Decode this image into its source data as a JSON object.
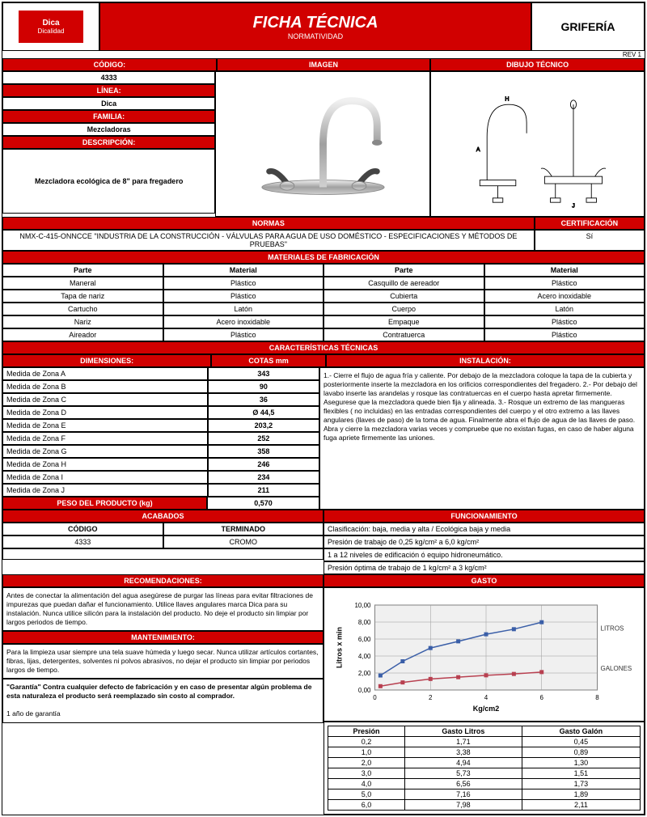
{
  "header": {
    "logo_top": "Dica",
    "logo_bottom": "Dicalidad",
    "title": "FICHA TÉCNICA",
    "subtitle": "NORMATIVIDAD",
    "category": "GRIFERÍA",
    "rev": "REV 1"
  },
  "labels": {
    "codigo": "CÓDIGO:",
    "imagen": "IMAGEN",
    "dibujo": "DIBUJO TÉCNICO",
    "linea": "LÍNEA:",
    "familia": "FAMILIA:",
    "descripcion": "DESCRIPCIÓN:",
    "normas": "NORMAS",
    "certificacion": "CERTIFICACIÓN",
    "materiales": "MATERIALES DE FABRICACIÓN",
    "parte": "Parte",
    "material": "Material",
    "caracteristicas": "CARACTERÍSTICAS TÉCNICAS",
    "dimensiones": "DIMENSIONES:",
    "cotas": "COTAS mm",
    "instalacion": "INSTALACIÓN:",
    "peso": "PESO DEL PRODUCTO (kg)",
    "acabados": "ACABADOS",
    "funcionamiento": "FUNCIONAMIENTO",
    "codigo2": "CÓDIGO",
    "terminado": "TERMINADO",
    "recomendaciones": "RECOMENDACIONES:",
    "gasto": "GASTO",
    "mantenimiento": "MANTENIMIENTO:",
    "presion": "Presión",
    "gasto_litros": "Gasto Litros",
    "gasto_galon": "Gasto Galón"
  },
  "info": {
    "codigo": "4333",
    "linea": "Dica",
    "familia": "Mezcladoras",
    "descripcion": "Mezcladora ecológica de 8\" para fregadero",
    "normas": "NMX-C-415-ONNCCE  \"INDUSTRIA DE LA CONSTRUCCIÓN -  VÁLVULAS PARA AGUA DE USO DOMÉSTICO - ESPECIFICACIONES Y MÉTODOS DE PRUEBAS\"",
    "certificacion": "Sí",
    "peso_val": "0,570"
  },
  "materiales": [
    [
      "Maneral",
      "Plástico",
      "Casquillo de aereador",
      "Plástico"
    ],
    [
      "Tapa de nariz",
      "Plástico",
      "Cubierta",
      "Acero inoxidable"
    ],
    [
      "Cartucho",
      "Latón",
      "Cuerpo",
      "Latón"
    ],
    [
      "Nariz",
      "Acero inoxidable",
      "Empaque",
      "Plástico"
    ],
    [
      "Aireador",
      "Plástico",
      "Contratuerca",
      "Plástico"
    ]
  ],
  "dimensiones": [
    [
      "Medida de Zona A",
      "343"
    ],
    [
      "Medida de Zona B",
      "90"
    ],
    [
      "Medida de Zona C",
      "36"
    ],
    [
      "Medida de Zona D",
      "Ø 44,5"
    ],
    [
      "Medida de Zona E",
      "203,2"
    ],
    [
      "Medida de Zona F",
      "252"
    ],
    [
      "Medida de Zona G",
      "358"
    ],
    [
      "Medida de Zona H",
      "246"
    ],
    [
      "Medida de Zona I",
      "234"
    ],
    [
      "Medida de Zona J",
      "211"
    ]
  ],
  "instalacion": "1.- Cierre el flujo de agua fría y caliente. Por debajo de la mezcladora coloque la tapa de la cubierta y posteriormente inserte la mezcladora en los orificios correspondientes del fregadero.                                                                    2.- Por debajo del lavabo inserte las arandelas y rosque las contratuercas en el cuerpo hasta apretar firmemente. Asegurese que la mezcladora quede bien fija y alineada.                                                                                                 3.- Rosque un extremo de las mangueras flexibles ( no incluidas) en las entradas correspondientes del cuerpo y el otro extremo a las llaves angulares (llaves de paso) de la toma de agua. Finalmente abra el flujo de agua de las llaves de paso. Abra y cierre la mezcladora varias veces y compruebe que no existan fugas, en caso de haber alguna fuga apriete firmemente las uniones.",
  "acabados": {
    "codigo": "4333",
    "terminado": "CROMO"
  },
  "funcionamiento": [
    "Clasificación: baja, media y alta / Ecológica baja y media",
    "Presión de trabajo de 0,25 kg/cm² a 6,0 kg/cm²",
    "1 a 12 niveles de edificación ó equipo hidroneumático.",
    "Presión óptima de trabajo de 1 kg/cm² a 3 kg/cm²"
  ],
  "recomendaciones": "Antes de conectar la alimentación del agua asegúrese de purgar las líneas para evitar filtraciones  de impurezas que puedan dañar el  funcionamiento. Utilice llaves angulares marca Dica para su instalación. Nunca utilice silicón para la instalación del producto. No deje el producto sin limpiar por largos periodos de tiempo.",
  "mantenimiento": "Para la limpieza usar siempre una tela suave húmeda y luego secar. Nunca utilizar artículos cortantes, fibras, lijas, detergentes, solventes ni polvos abrasivos, no dejar el producto sin limpiar por periodos largos de tiempo.",
  "garantia": "\"Garantía\" Contra cualquier defecto de fabricación y en caso de presentar algún problema de esta naturaleza el producto será reemplazado sin costo al comprador.",
  "garantia2": "1 año de garantía",
  "chart": {
    "xlabel": "Kg/cm2",
    "ylabel": "Litros x min",
    "series1": "LITROS",
    "series2": "GALONES",
    "xlim": [
      0,
      8
    ],
    "ylim": [
      0,
      10
    ],
    "xticks": [
      0,
      2,
      4,
      6,
      8
    ],
    "yticks": [
      0,
      2,
      4,
      6,
      8,
      10
    ],
    "ylabels": [
      "0,00",
      "2,00",
      "4,00",
      "6,00",
      "8,00",
      "10,00"
    ],
    "litros_color": "#3b5fa8",
    "galones_color": "#b84050",
    "grid_color": "#999",
    "bg": "#f0f0f0",
    "litros_pts": [
      [
        0.2,
        1.71
      ],
      [
        1,
        3.38
      ],
      [
        2,
        4.94
      ],
      [
        3,
        5.73
      ],
      [
        4,
        6.56
      ],
      [
        5,
        7.16
      ],
      [
        6,
        7.98
      ]
    ],
    "galones_pts": [
      [
        0.2,
        0.45
      ],
      [
        1,
        0.89
      ],
      [
        2,
        1.3
      ],
      [
        3,
        1.51
      ],
      [
        4,
        1.73
      ],
      [
        5,
        1.89
      ],
      [
        6,
        2.11
      ]
    ]
  },
  "gasto_table": [
    [
      "0,2",
      "1,71",
      "0,45"
    ],
    [
      "1,0",
      "3,38",
      "0,89"
    ],
    [
      "2,0",
      "4,94",
      "1,30"
    ],
    [
      "3,0",
      "5,73",
      "1,51"
    ],
    [
      "4,0",
      "6,56",
      "1,73"
    ],
    [
      "5,0",
      "7,16",
      "1,89"
    ],
    [
      "6,0",
      "7,98",
      "2,11"
    ]
  ]
}
